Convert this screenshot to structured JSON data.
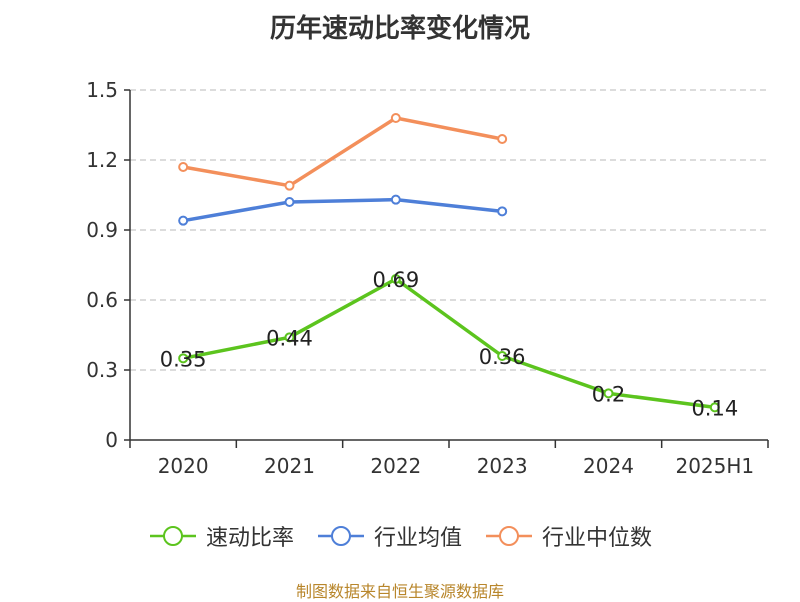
{
  "chart_data": {
    "type": "line",
    "title": "历年速动比率变化情况",
    "categories": [
      "2020",
      "2021",
      "2022",
      "2023",
      "2024",
      "2025H1"
    ],
    "ylim": [
      0,
      1.5
    ],
    "yticks": [
      "0",
      "0.3",
      "0.6",
      "0.9",
      "1.2",
      "1.5"
    ],
    "grid": true,
    "legend_position": "bottom",
    "series": [
      {
        "name": "速动比率",
        "color": "#5cc41e",
        "values": [
          0.35,
          0.44,
          0.69,
          0.36,
          0.2,
          0.14
        ],
        "labels": [
          "0.35",
          "0.44",
          "0.69",
          "0.36",
          "0.2",
          "0.14"
        ]
      },
      {
        "name": "行业均值",
        "color": "#4e7fd8",
        "values": [
          0.94,
          1.02,
          1.03,
          0.98,
          null,
          null
        ]
      },
      {
        "name": "行业中位数",
        "color": "#f38f5b",
        "values": [
          1.17,
          1.09,
          1.38,
          1.29,
          null,
          null
        ]
      }
    ]
  },
  "source": "制图数据来自恒生聚源数据库"
}
